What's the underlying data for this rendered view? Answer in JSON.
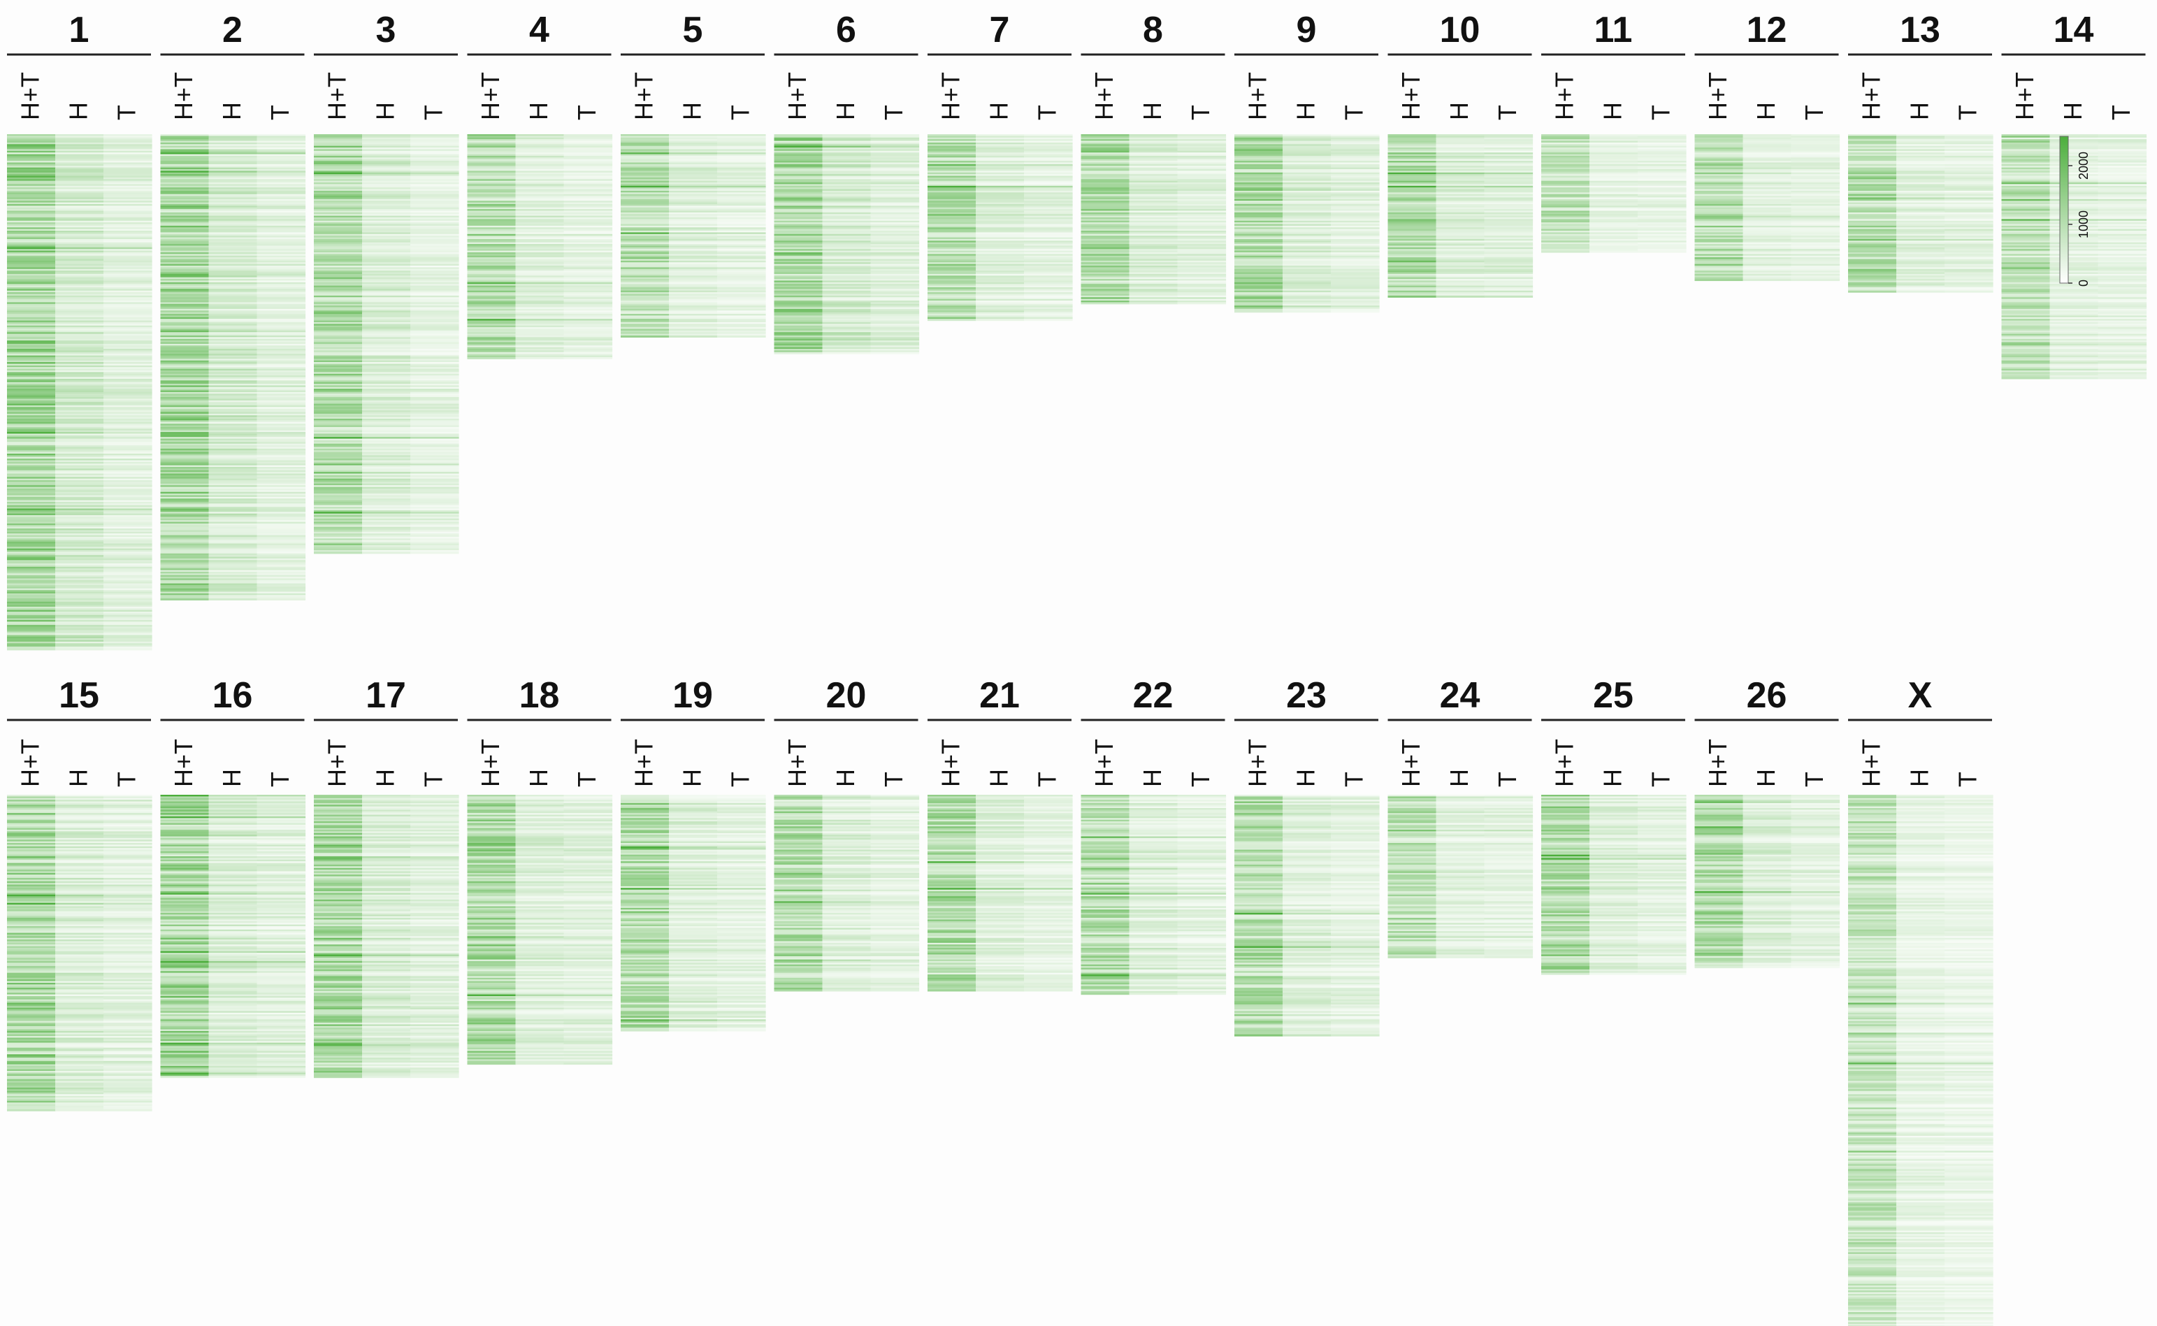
{
  "chart_data": {
    "type": "heatmap",
    "columns": [
      "H+T",
      "H",
      "T"
    ],
    "panels": [
      {
        "label": "1",
        "rows": 310,
        "intensity": [
          1300,
          650,
          450
        ]
      },
      {
        "label": "2",
        "rows": 280,
        "intensity": [
          1300,
          650,
          450
        ]
      },
      {
        "label": "3",
        "rows": 252,
        "intensity": [
          1150,
          550,
          400
        ]
      },
      {
        "label": "4",
        "rows": 135,
        "intensity": [
          1100,
          500,
          400
        ]
      },
      {
        "label": "5",
        "rows": 122,
        "intensity": [
          1050,
          500,
          400
        ]
      },
      {
        "label": "6",
        "rows": 132,
        "intensity": [
          1300,
          650,
          500
        ]
      },
      {
        "label": "7",
        "rows": 112,
        "intensity": [
          1100,
          500,
          400
        ]
      },
      {
        "label": "8",
        "rows": 102,
        "intensity": [
          1200,
          550,
          450
        ]
      },
      {
        "label": "9",
        "rows": 107,
        "intensity": [
          1200,
          550,
          450
        ]
      },
      {
        "label": "10",
        "rows": 98,
        "intensity": [
          1250,
          550,
          500
        ]
      },
      {
        "label": "11",
        "rows": 71,
        "intensity": [
          950,
          400,
          350
        ]
      },
      {
        "label": "12",
        "rows": 88,
        "intensity": [
          1050,
          450,
          400
        ]
      },
      {
        "label": "13",
        "rows": 95,
        "intensity": [
          1050,
          450,
          400
        ]
      },
      {
        "label": "14",
        "rows": 147,
        "intensity": [
          1050,
          450,
          400
        ]
      },
      {
        "label": "15",
        "rows": 190,
        "intensity": [
          1250,
          550,
          450
        ]
      },
      {
        "label": "16",
        "rows": 170,
        "intensity": [
          1250,
          550,
          450
        ]
      },
      {
        "label": "17",
        "rows": 170,
        "intensity": [
          1250,
          550,
          450
        ]
      },
      {
        "label": "18",
        "rows": 162,
        "intensity": [
          1200,
          500,
          450
        ]
      },
      {
        "label": "19",
        "rows": 142,
        "intensity": [
          1150,
          500,
          400
        ]
      },
      {
        "label": "20",
        "rows": 118,
        "intensity": [
          1150,
          500,
          400
        ]
      },
      {
        "label": "21",
        "rows": 118,
        "intensity": [
          1150,
          500,
          400
        ]
      },
      {
        "label": "22",
        "rows": 120,
        "intensity": [
          1150,
          500,
          400
        ]
      },
      {
        "label": "23",
        "rows": 145,
        "intensity": [
          1100,
          500,
          400
        ]
      },
      {
        "label": "24",
        "rows": 98,
        "intensity": [
          1000,
          450,
          400
        ]
      },
      {
        "label": "25",
        "rows": 108,
        "intensity": [
          1150,
          500,
          400
        ]
      },
      {
        "label": "26",
        "rows": 104,
        "intensity": [
          1150,
          500,
          400
        ]
      },
      {
        "label": "X",
        "rows": 320,
        "intensity": [
          850,
          350,
          300
        ]
      }
    ],
    "colorbar": {
      "min": 0,
      "max": 2500,
      "ticks": [
        0,
        1000,
        2000
      ],
      "color_low": "#ffffff",
      "color_high": "#4cae3c"
    },
    "grid": false,
    "legend": "top-right"
  }
}
